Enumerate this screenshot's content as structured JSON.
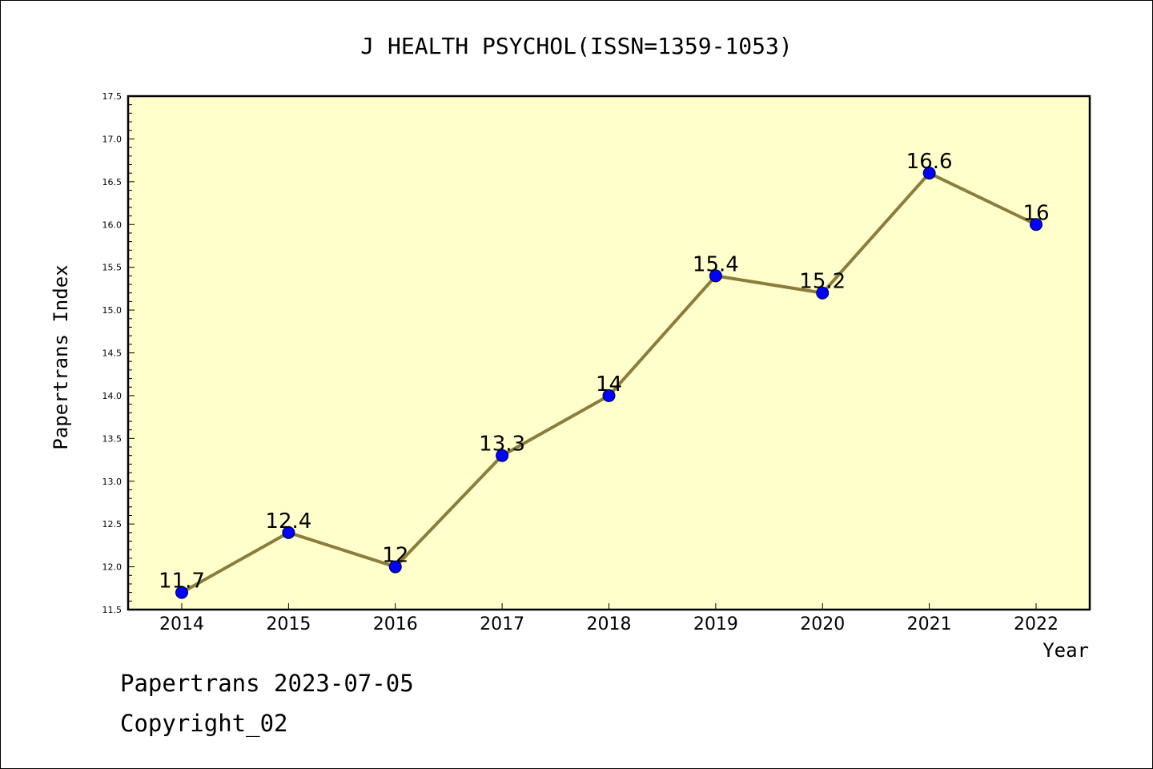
{
  "chart_data": {
    "type": "line",
    "title": "J HEALTH PSYCHOL(ISSN=1359-1053)",
    "xlabel": "Year",
    "ylabel": "Papertrans Index",
    "categories": [
      "2014",
      "2015",
      "2016",
      "2017",
      "2018",
      "2019",
      "2020",
      "2021",
      "2022"
    ],
    "values": [
      11.7,
      12.4,
      12,
      13.3,
      14,
      15.4,
      15.2,
      16.6,
      16
    ],
    "data_labels": [
      "11.7",
      "12.4",
      "12",
      "13.3",
      "14",
      "15.4",
      "15.2",
      "16.6",
      "16"
    ],
    "ylim": [
      11.5,
      17.5
    ],
    "yticks": [
      "11.5",
      "12.0",
      "12.5",
      "13.0",
      "13.5",
      "14.0",
      "14.5",
      "15.0",
      "15.5",
      "16.0",
      "16.5",
      "17.0",
      "17.5"
    ],
    "grid": false,
    "colors": {
      "plot_background": "#ffffcc",
      "line": "#8b7d3a",
      "marker": "#0000ff"
    }
  },
  "footer": {
    "line1": "Papertrans 2023-07-05",
    "line2": "Copyright_02"
  }
}
